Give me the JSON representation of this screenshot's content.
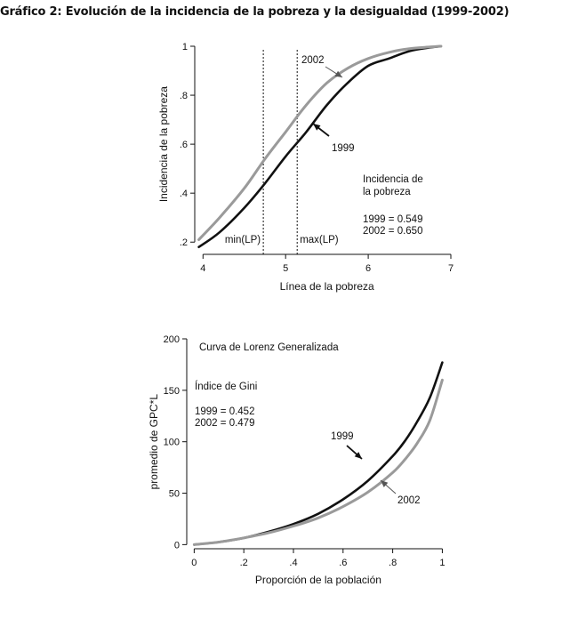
{
  "figure_title": "Gráfico 2: Evolución de la incidencia de la pobreza y la desigualdad (1999-2002)",
  "colors": {
    "series_1999": "#111111",
    "series_2002": "#9a9a9a"
  },
  "chart_data": [
    {
      "type": "line",
      "xlabel": "Línea de la pobreza",
      "ylabel": "Incidencia de la pobreza",
      "xlim": [
        3.9,
        7
      ],
      "ylim": [
        0.15,
        1
      ],
      "x_ticks": [
        4,
        5,
        6,
        7
      ],
      "x_tick_labels": [
        "4",
        "5",
        "6",
        "7"
      ],
      "y_ticks": [
        0.2,
        0.4,
        0.6,
        0.8,
        1
      ],
      "y_tick_labels": [
        ".2",
        ".4",
        ".6",
        ".8",
        "1"
      ],
      "grid": false,
      "series": [
        {
          "name": "1999",
          "x": [
            3.95,
            4.2,
            4.5,
            4.75,
            5.0,
            5.25,
            5.5,
            5.75,
            6.0,
            6.25,
            6.5,
            6.75,
            6.88
          ],
          "y": [
            0.18,
            0.24,
            0.34,
            0.44,
            0.55,
            0.65,
            0.76,
            0.85,
            0.92,
            0.95,
            0.98,
            0.995,
            1.0
          ]
        },
        {
          "name": "2002",
          "x": [
            3.95,
            4.2,
            4.5,
            4.75,
            5.0,
            5.25,
            5.5,
            5.75,
            6.0,
            6.25,
            6.5,
            6.75,
            6.88
          ],
          "y": [
            0.21,
            0.3,
            0.42,
            0.54,
            0.65,
            0.76,
            0.85,
            0.91,
            0.95,
            0.975,
            0.99,
            0.997,
            1.0
          ]
        }
      ],
      "vlines": [
        {
          "x": 4.73,
          "label": "min(LP)"
        },
        {
          "x": 5.14,
          "label": "max(LP)"
        }
      ],
      "annotations": {
        "label_2002": "2002",
        "label_1999": "1999",
        "box_title_1": "Incidencia de",
        "box_title_2": "la pobreza",
        "value_1999": "1999 = 0.549",
        "value_2002": "2002 = 0.650"
      }
    },
    {
      "type": "line",
      "xlabel": "Proporción de la población",
      "ylabel": "promedio de GPC*L",
      "xlim": [
        -0.03,
        1.02
      ],
      "ylim": [
        -4,
        200
      ],
      "x_ticks": [
        0,
        0.2,
        0.4,
        0.6,
        0.8,
        1
      ],
      "x_tick_labels": [
        "0",
        ".2",
        ".4",
        ".6",
        ".8",
        "1"
      ],
      "y_ticks": [
        0,
        50,
        100,
        150,
        200
      ],
      "y_tick_labels": [
        "0",
        "50",
        "100",
        "150",
        "200"
      ],
      "grid": false,
      "series": [
        {
          "name": "1999",
          "x": [
            0,
            0.1,
            0.2,
            0.3,
            0.4,
            0.5,
            0.6,
            0.7,
            0.8,
            0.85,
            0.9,
            0.95,
            1.0
          ],
          "y": [
            0,
            2.5,
            6.5,
            12.5,
            20,
            30,
            44,
            62,
            86,
            101,
            120,
            143,
            177
          ]
        },
        {
          "name": "2002",
          "x": [
            0,
            0.1,
            0.2,
            0.3,
            0.4,
            0.5,
            0.6,
            0.7,
            0.8,
            0.85,
            0.9,
            0.95,
            1.0
          ],
          "y": [
            0,
            2.5,
            6.5,
            11.5,
            18,
            26,
            37,
            51,
            70,
            83,
            99,
            121,
            160
          ]
        }
      ],
      "annotations": {
        "box_title": "Curva de Lorenz Generalizada",
        "gini_title": "Índice de Gini",
        "value_1999": "1999 = 0.452",
        "value_2002": "2002 = 0.479",
        "label_1999": "1999",
        "label_2002": "2002"
      }
    }
  ]
}
